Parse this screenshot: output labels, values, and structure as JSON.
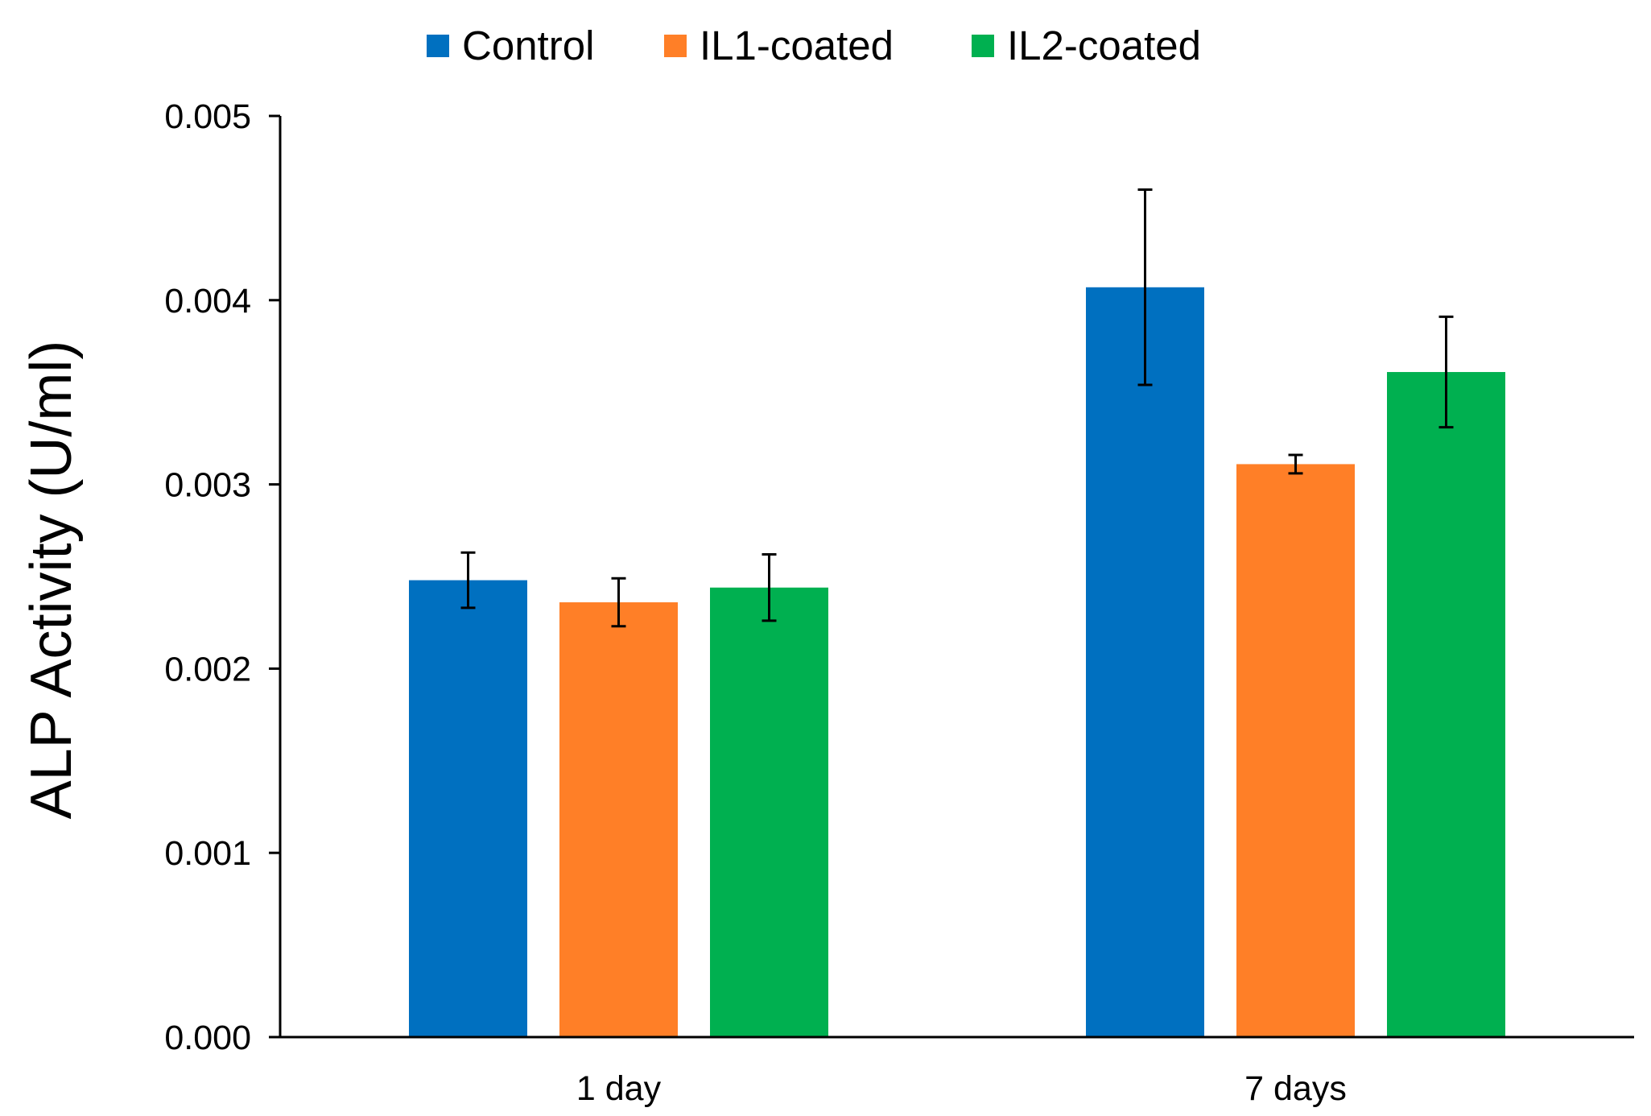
{
  "chart_data": {
    "type": "bar",
    "title": "",
    "xlabel": "",
    "ylabel": "ALP Activity (U/ml)",
    "ylim": [
      0,
      0.005
    ],
    "yticks": [
      "0.000",
      "0.001",
      "0.002",
      "0.003",
      "0.004",
      "0.005"
    ],
    "ytick_values": [
      0,
      0.001,
      0.002,
      0.003,
      0.004,
      0.005
    ],
    "categories": [
      "1 day",
      "7 days"
    ],
    "series": [
      {
        "name": "Control",
        "color": "#0070C0",
        "values": [
          0.00248,
          0.00407
        ],
        "errors": [
          0.00015,
          0.00053
        ]
      },
      {
        "name": "IL1-coated",
        "color": "#FF7F27",
        "values": [
          0.00236,
          0.00311
        ],
        "errors": [
          0.00013,
          5e-05
        ]
      },
      {
        "name": "IL2-coated",
        "color": "#00B050",
        "values": [
          0.00244,
          0.00361
        ],
        "errors": [
          0.00018,
          0.0003
        ]
      }
    ],
    "legend_position": "top-center",
    "grid": false
  }
}
